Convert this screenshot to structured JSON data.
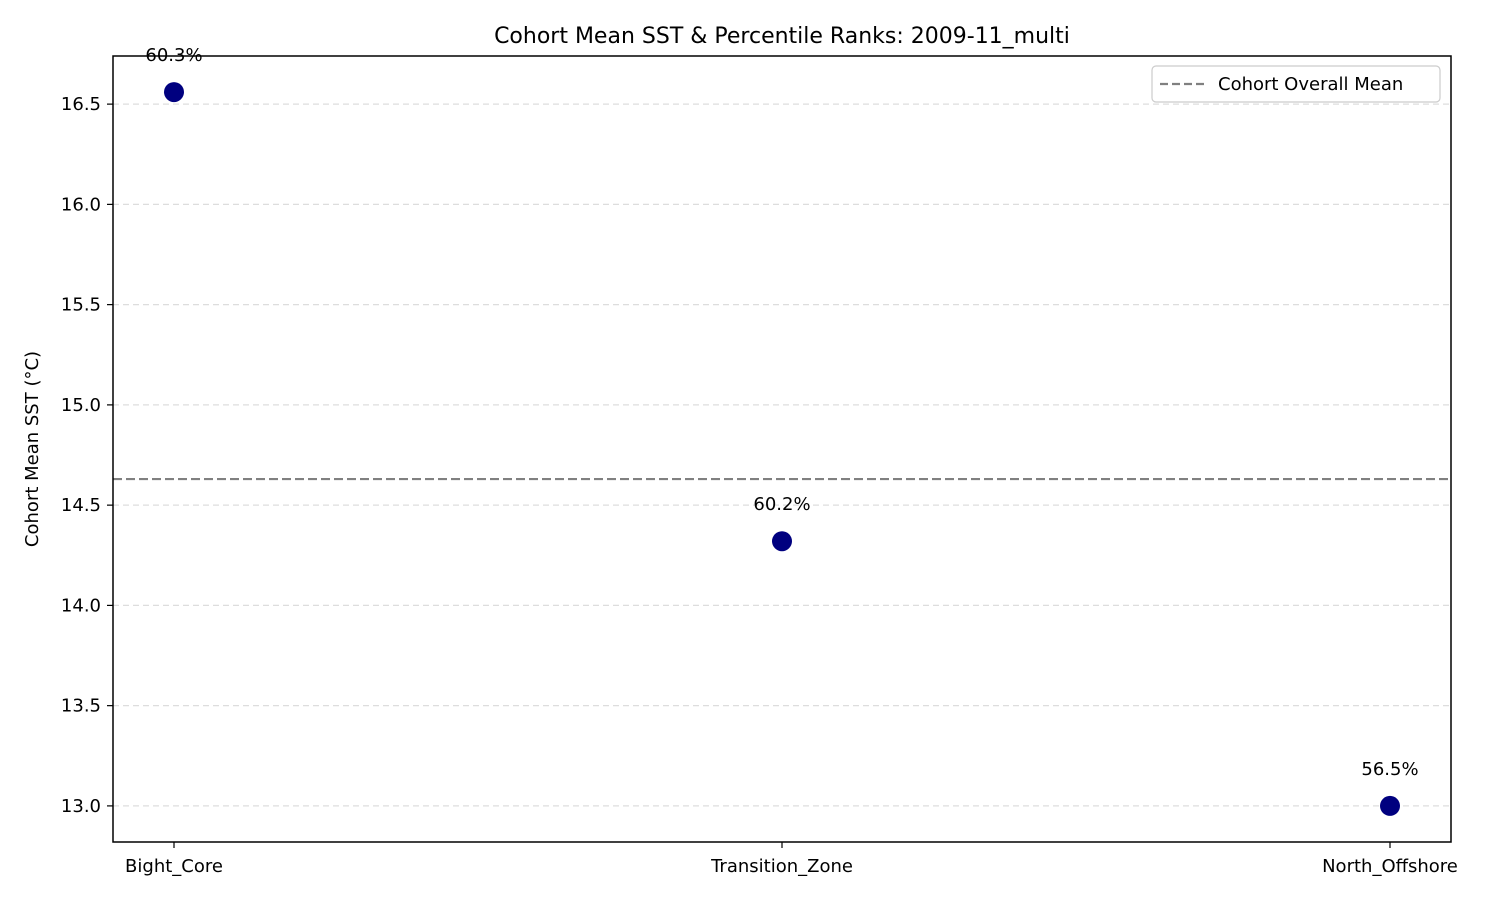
{
  "chart_data": {
    "type": "scatter",
    "title": "Cohort Mean SST & Percentile Ranks: 2009-11_multi",
    "xlabel": "",
    "ylabel": "Cohort Mean SST (°C)",
    "categories": [
      "Bight_Core",
      "Transition_Zone",
      "North_Offshore"
    ],
    "values": [
      16.56,
      14.32,
      13.0
    ],
    "point_labels": [
      "60.3%",
      "60.2%",
      "56.5%"
    ],
    "reference_line": {
      "name": "Cohort Overall Mean",
      "value": 14.63,
      "style": "dashed",
      "color": "#808080"
    },
    "ylim": [
      12.82,
      16.74
    ],
    "yticks": [
      13.0,
      13.5,
      14.0,
      14.5,
      15.0,
      15.5,
      16.0,
      16.5
    ],
    "ytick_labels": [
      "13.0",
      "13.5",
      "14.0",
      "14.5",
      "15.0",
      "15.5",
      "16.0",
      "16.5"
    ],
    "grid": {
      "y": true,
      "x": false,
      "style": "dashed"
    },
    "legend": {
      "position": "top-right",
      "entries": [
        "Cohort Overall Mean"
      ]
    },
    "colors": {
      "points": "#00007f",
      "reference_line": "#808080",
      "grid": "#dddddd"
    }
  }
}
